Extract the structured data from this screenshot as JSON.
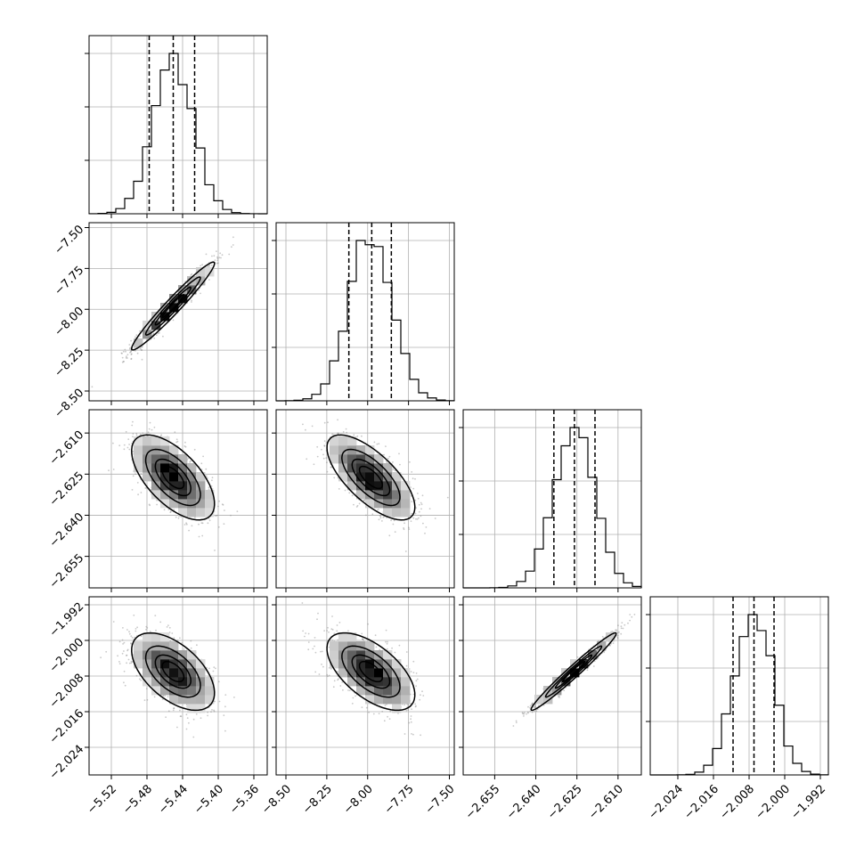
{
  "chart_data": {
    "type": "corner",
    "title": "",
    "parameters": [
      {
        "ticks": [
          -5.52,
          -5.48,
          -5.44,
          -5.4,
          -5.36
        ],
        "tick_labels": [
          "−5.52",
          "−5.48",
          "−5.44",
          "−5.40",
          "−5.36"
        ],
        "range": [
          -5.545,
          -5.345
        ],
        "mean": -5.4507,
        "sigma": 0.0225,
        "quantiles": [
          -5.4775,
          -5.4505,
          -5.4265
        ],
        "hist_peak_norm": 0.9
      },
      {
        "ticks": [
          -8.5,
          -8.25,
          -8.0,
          -7.75,
          -7.5
        ],
        "tick_labels": [
          "−8.50",
          "−8.25",
          "−8.00",
          "−7.75",
          "−7.50"
        ],
        "range": [
          -8.56,
          -7.47
        ],
        "mean": -7.98,
        "sigma": 0.13,
        "quantiles": [
          -8.115,
          -7.975,
          -7.855
        ],
        "hist_peak_norm": 0.9
      },
      {
        "ticks": [
          -2.655,
          -2.64,
          -2.625,
          -2.61
        ],
        "tick_labels": [
          "−2.655",
          "−2.640",
          "−2.625",
          "−2.610"
        ],
        "range": [
          -2.6665,
          -2.6015
        ],
        "mean": -2.6262,
        "sigma": 0.0075,
        "quantiles": [
          -2.6334,
          -2.6259,
          -2.6184
        ],
        "hist_peak_norm": 0.9
      },
      {
        "ticks": [
          -2.024,
          -2.016,
          -2.008,
          -2.0,
          -1.992
        ],
        "tick_labels": [
          "−2.024",
          "−2.016",
          "−2.008",
          "−2.000",
          "−1.992"
        ],
        "range": [
          -2.0302,
          -1.9902
        ],
        "mean": -2.007,
        "sigma": 0.0042,
        "quantiles": [
          -2.0116,
          -2.0069,
          -2.0024
        ],
        "hist_peak_norm": 0.9
      }
    ],
    "correlations": [
      [
        1.0,
        0.97,
        -0.62,
        -0.55
      ],
      [
        0.97,
        1.0,
        -0.7,
        -0.6
      ],
      [
        -0.62,
        -0.7,
        1.0,
        0.98
      ],
      [
        -0.55,
        -0.6,
        0.98,
        1.0
      ]
    ],
    "contour_levels_sigma": [
      0.5,
      1.0,
      1.5,
      2.0
    ],
    "grid": true,
    "histogram_bins": 20
  }
}
